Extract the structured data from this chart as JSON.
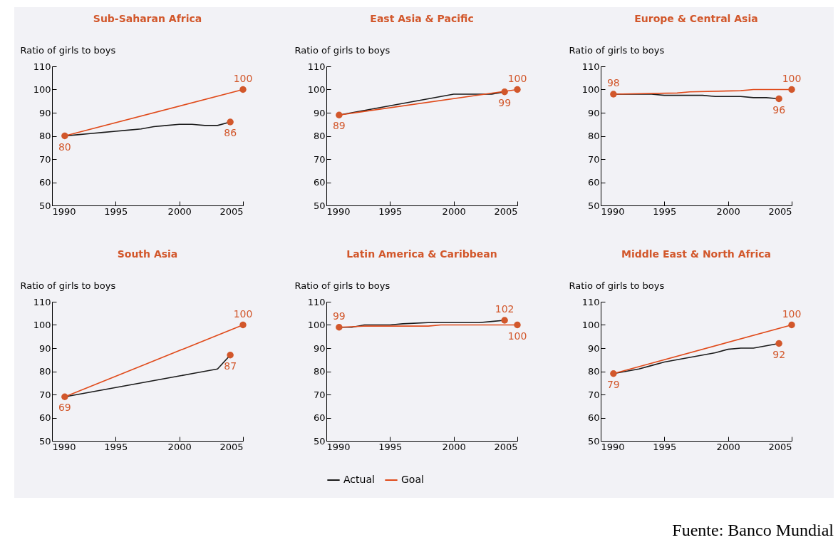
{
  "chart_data": [
    {
      "type": "line",
      "title": "Sub-Saharan Africa",
      "ylabel": "Ratio of girls to boys",
      "xlim": [
        1990,
        2005
      ],
      "xticks": [
        1990,
        1995,
        2000,
        2005
      ],
      "ylim": [
        50,
        110
      ],
      "yticks": [
        50,
        60,
        70,
        80,
        90,
        100,
        110
      ],
      "series": [
        {
          "color": "#1a1a1a",
          "x": [
            1991,
            1992,
            1993,
            1994,
            1995,
            1996,
            1997,
            1998,
            1999,
            2000,
            2001,
            2002,
            2003,
            2004
          ],
          "values": [
            80,
            80.5,
            81,
            81.5,
            82,
            82.5,
            83,
            84,
            84.5,
            85,
            85,
            84.5,
            84.5,
            86
          ]
        },
        {
          "color": "#e04a1a",
          "x": [
            1991,
            2005
          ],
          "values": [
            80,
            100
          ]
        }
      ],
      "annotations": [
        {
          "text": "80",
          "x": 1991,
          "y": 80
        },
        {
          "text": "86",
          "x": 2004,
          "y": 86
        },
        {
          "text": "100",
          "x": 2005,
          "y": 100
        }
      ]
    },
    {
      "type": "line",
      "title": "East Asia & Pacific",
      "ylabel": "Ratio of girls to boys",
      "xlim": [
        1990,
        2005
      ],
      "xticks": [
        1990,
        1995,
        2000,
        2005
      ],
      "ylim": [
        50,
        110
      ],
      "yticks": [
        50,
        60,
        70,
        80,
        90,
        100,
        110
      ],
      "series": [
        {
          "color": "#1a1a1a",
          "x": [
            1991,
            1992,
            1993,
            1994,
            1995,
            1996,
            1997,
            1998,
            1999,
            2000,
            2001,
            2002,
            2003,
            2004
          ],
          "values": [
            89,
            90,
            91,
            92,
            93,
            94,
            95,
            96,
            97,
            98,
            98,
            98,
            98,
            99
          ]
        },
        {
          "color": "#e04a1a",
          "x": [
            1991,
            2005
          ],
          "values": [
            89,
            100
          ]
        }
      ],
      "annotations": [
        {
          "text": "89",
          "x": 1991,
          "y": 89
        },
        {
          "text": "99",
          "x": 2004,
          "y": 99
        },
        {
          "text": "100",
          "x": 2005,
          "y": 100
        }
      ]
    },
    {
      "type": "line",
      "title": "Europe & Central Asia",
      "ylabel": "Ratio of girls to boys",
      "xlim": [
        1990,
        2005
      ],
      "xticks": [
        1990,
        1995,
        2000,
        2005
      ],
      "ylim": [
        50,
        110
      ],
      "yticks": [
        50,
        60,
        70,
        80,
        90,
        100,
        110
      ],
      "series": [
        {
          "color": "#1a1a1a",
          "x": [
            1991,
            1994,
            1995,
            1998,
            1999,
            2001,
            2002,
            2003,
            2004
          ],
          "values": [
            98,
            98,
            97.5,
            97.5,
            97,
            97,
            96.5,
            96.5,
            96
          ]
        },
        {
          "color": "#e04a1a",
          "x": [
            1991,
            1996,
            1997,
            2001,
            2002,
            2005
          ],
          "values": [
            98,
            98.5,
            99,
            99.5,
            100,
            100
          ]
        }
      ],
      "annotations": [
        {
          "text": "98",
          "x": 1991,
          "y": 98
        },
        {
          "text": "96",
          "x": 2004,
          "y": 96
        },
        {
          "text": "100",
          "x": 2005,
          "y": 100
        }
      ]
    },
    {
      "type": "line",
      "title": "South Asia",
      "ylabel": "Ratio of girls to boys",
      "xlim": [
        1990,
        2005
      ],
      "xticks": [
        1990,
        1995,
        2000,
        2005
      ],
      "ylim": [
        50,
        110
      ],
      "yticks": [
        50,
        60,
        70,
        80,
        90,
        100,
        110
      ],
      "series": [
        {
          "color": "#1a1a1a",
          "x": [
            1991,
            1992,
            1993,
            1994,
            1995,
            1996,
            1997,
            1998,
            1999,
            2000,
            2001,
            2002,
            2003,
            2004
          ],
          "values": [
            69,
            70,
            71,
            72,
            73,
            74,
            75,
            76,
            77,
            78,
            79,
            80,
            81,
            87
          ]
        },
        {
          "color": "#e04a1a",
          "x": [
            1991,
            2005
          ],
          "values": [
            69,
            100
          ]
        }
      ],
      "annotations": [
        {
          "text": "69",
          "x": 1991,
          "y": 69
        },
        {
          "text": "87",
          "x": 2004,
          "y": 87
        },
        {
          "text": "100",
          "x": 2005,
          "y": 100
        }
      ]
    },
    {
      "type": "line",
      "title": "Latin America & Caribbean",
      "ylabel": "Ratio of girls to boys",
      "xlim": [
        1990,
        2005
      ],
      "xticks": [
        1990,
        1995,
        2000,
        2005
      ],
      "ylim": [
        50,
        110
      ],
      "yticks": [
        50,
        60,
        70,
        80,
        90,
        100,
        110
      ],
      "legend": "bottom",
      "series": [
        {
          "name": "Actual",
          "color": "#1a1a1a",
          "x": [
            1991,
            1992,
            1993,
            1995,
            1996,
            1998,
            2002,
            2003,
            2004
          ],
          "values": [
            99,
            99,
            100,
            100,
            100.5,
            101,
            101,
            101.5,
            102
          ]
        },
        {
          "name": "Goal",
          "color": "#e04a1a",
          "x": [
            1991,
            1993,
            1998,
            1999,
            2005
          ],
          "values": [
            99,
            99.5,
            99.5,
            100,
            100
          ]
        }
      ],
      "annotations": [
        {
          "text": "99",
          "x": 1991,
          "y": 99
        },
        {
          "text": "102",
          "x": 2004,
          "y": 102
        },
        {
          "text": "100",
          "x": 2005,
          "y": 100
        }
      ]
    },
    {
      "type": "line",
      "title": "Middle East & North Africa",
      "ylabel": "Ratio of girls to boys",
      "xlim": [
        1990,
        2005
      ],
      "xticks": [
        1990,
        1995,
        2000,
        2005
      ],
      "ylim": [
        50,
        110
      ],
      "yticks": [
        50,
        60,
        70,
        80,
        90,
        100,
        110
      ],
      "series": [
        {
          "color": "#1a1a1a",
          "x": [
            1991,
            1992,
            1993,
            1994,
            1995,
            1996,
            1997,
            1998,
            1999,
            2000,
            2001,
            2002,
            2003,
            2004
          ],
          "values": [
            79,
            80,
            81,
            82.5,
            84,
            85,
            86,
            87,
            88,
            89.5,
            90,
            90,
            91,
            92
          ]
        },
        {
          "color": "#e04a1a",
          "x": [
            1991,
            2005
          ],
          "values": [
            79,
            100
          ]
        }
      ],
      "annotations": [
        {
          "text": "79",
          "x": 1991,
          "y": 79
        },
        {
          "text": "92",
          "x": 2004,
          "y": 92
        },
        {
          "text": "100",
          "x": 2005,
          "y": 100
        },
        "Fuente: Banco Mundial"
      ]
    }
  ]
}
